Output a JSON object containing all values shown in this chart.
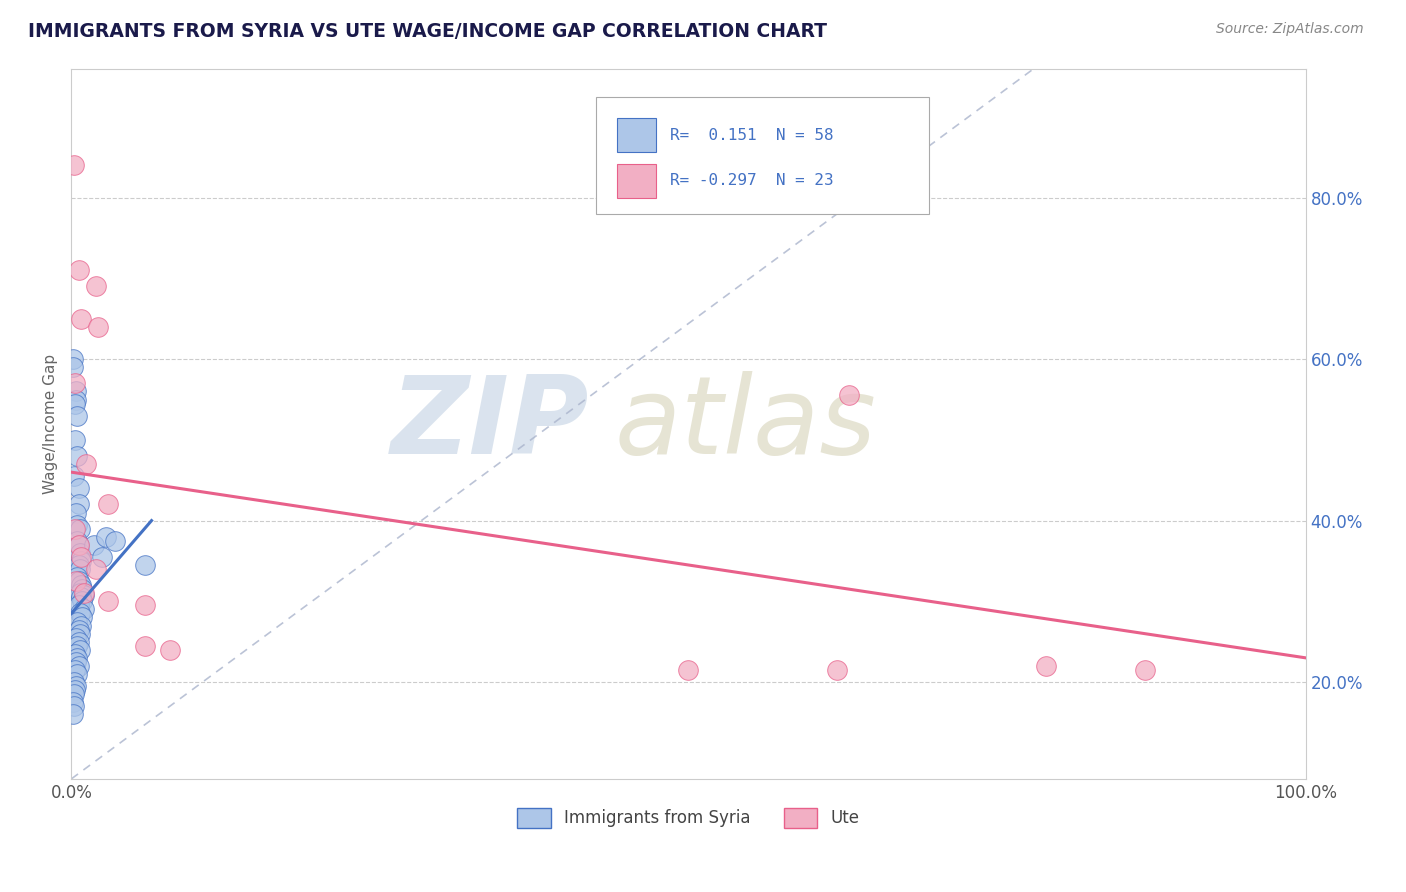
{
  "title": "IMMIGRANTS FROM SYRIA VS UTE WAGE/INCOME GAP CORRELATION CHART",
  "source": "Source: ZipAtlas.com",
  "ylabel": "Wage/Income Gap",
  "blue_color": "#adc6e8",
  "pink_color": "#f2afc4",
  "blue_line_color": "#4472c4",
  "pink_line_color": "#e8608a",
  "dashed_line_color": "#aab4cc",
  "title_color": "#1a1a4a",
  "blue_dots": [
    [
      0.001,
      0.6
    ],
    [
      0.001,
      0.59
    ],
    [
      0.004,
      0.56
    ],
    [
      0.004,
      0.55
    ],
    [
      0.003,
      0.545
    ],
    [
      0.005,
      0.53
    ],
    [
      0.003,
      0.5
    ],
    [
      0.005,
      0.48
    ],
    [
      0.002,
      0.455
    ],
    [
      0.006,
      0.44
    ],
    [
      0.006,
      0.42
    ],
    [
      0.004,
      0.41
    ],
    [
      0.005,
      0.395
    ],
    [
      0.007,
      0.39
    ],
    [
      0.005,
      0.375
    ],
    [
      0.006,
      0.37
    ],
    [
      0.007,
      0.36
    ],
    [
      0.008,
      0.35
    ],
    [
      0.006,
      0.345
    ],
    [
      0.007,
      0.34
    ],
    [
      0.005,
      0.33
    ],
    [
      0.006,
      0.325
    ],
    [
      0.008,
      0.32
    ],
    [
      0.009,
      0.315
    ],
    [
      0.007,
      0.31
    ],
    [
      0.01,
      0.308
    ],
    [
      0.008,
      0.305
    ],
    [
      0.009,
      0.3
    ],
    [
      0.006,
      0.295
    ],
    [
      0.01,
      0.29
    ],
    [
      0.007,
      0.285
    ],
    [
      0.009,
      0.28
    ],
    [
      0.005,
      0.275
    ],
    [
      0.008,
      0.27
    ],
    [
      0.006,
      0.265
    ],
    [
      0.007,
      0.26
    ],
    [
      0.004,
      0.255
    ],
    [
      0.006,
      0.25
    ],
    [
      0.005,
      0.245
    ],
    [
      0.007,
      0.24
    ],
    [
      0.003,
      0.235
    ],
    [
      0.005,
      0.23
    ],
    [
      0.004,
      0.225
    ],
    [
      0.006,
      0.22
    ],
    [
      0.003,
      0.215
    ],
    [
      0.005,
      0.21
    ],
    [
      0.002,
      0.2
    ],
    [
      0.004,
      0.195
    ],
    [
      0.003,
      0.19
    ],
    [
      0.002,
      0.185
    ],
    [
      0.001,
      0.175
    ],
    [
      0.002,
      0.17
    ],
    [
      0.001,
      0.16
    ],
    [
      0.018,
      0.37
    ],
    [
      0.025,
      0.355
    ],
    [
      0.06,
      0.345
    ],
    [
      0.028,
      0.38
    ],
    [
      0.035,
      0.375
    ]
  ],
  "pink_dots": [
    [
      0.002,
      0.84
    ],
    [
      0.006,
      0.71
    ],
    [
      0.02,
      0.69
    ],
    [
      0.008,
      0.65
    ],
    [
      0.022,
      0.64
    ],
    [
      0.003,
      0.57
    ],
    [
      0.012,
      0.47
    ],
    [
      0.03,
      0.42
    ],
    [
      0.003,
      0.39
    ],
    [
      0.006,
      0.37
    ],
    [
      0.008,
      0.355
    ],
    [
      0.02,
      0.34
    ],
    [
      0.004,
      0.325
    ],
    [
      0.01,
      0.31
    ],
    [
      0.06,
      0.295
    ],
    [
      0.63,
      0.555
    ],
    [
      0.03,
      0.3
    ],
    [
      0.06,
      0.245
    ],
    [
      0.08,
      0.24
    ],
    [
      0.5,
      0.215
    ],
    [
      0.62,
      0.215
    ],
    [
      0.79,
      0.22
    ],
    [
      0.87,
      0.215
    ]
  ],
  "xlim": [
    0.0,
    1.0
  ],
  "ylim": [
    0.08,
    0.96
  ],
  "ytick_vals": [
    0.2,
    0.4,
    0.6,
    0.8
  ],
  "ytick_labels": [
    "20.0%",
    "40.0%",
    "60.0%",
    "80.0%"
  ],
  "blue_line_x": [
    0.0,
    0.065
  ],
  "blue_line_y": [
    0.285,
    0.4
  ],
  "pink_line_x": [
    0.0,
    1.0
  ],
  "pink_line_y": [
    0.46,
    0.23
  ],
  "dash_line_x1": 0.0,
  "dash_line_y1": 0.08,
  "dash_line_x2": 0.78,
  "dash_line_y2": 0.96
}
